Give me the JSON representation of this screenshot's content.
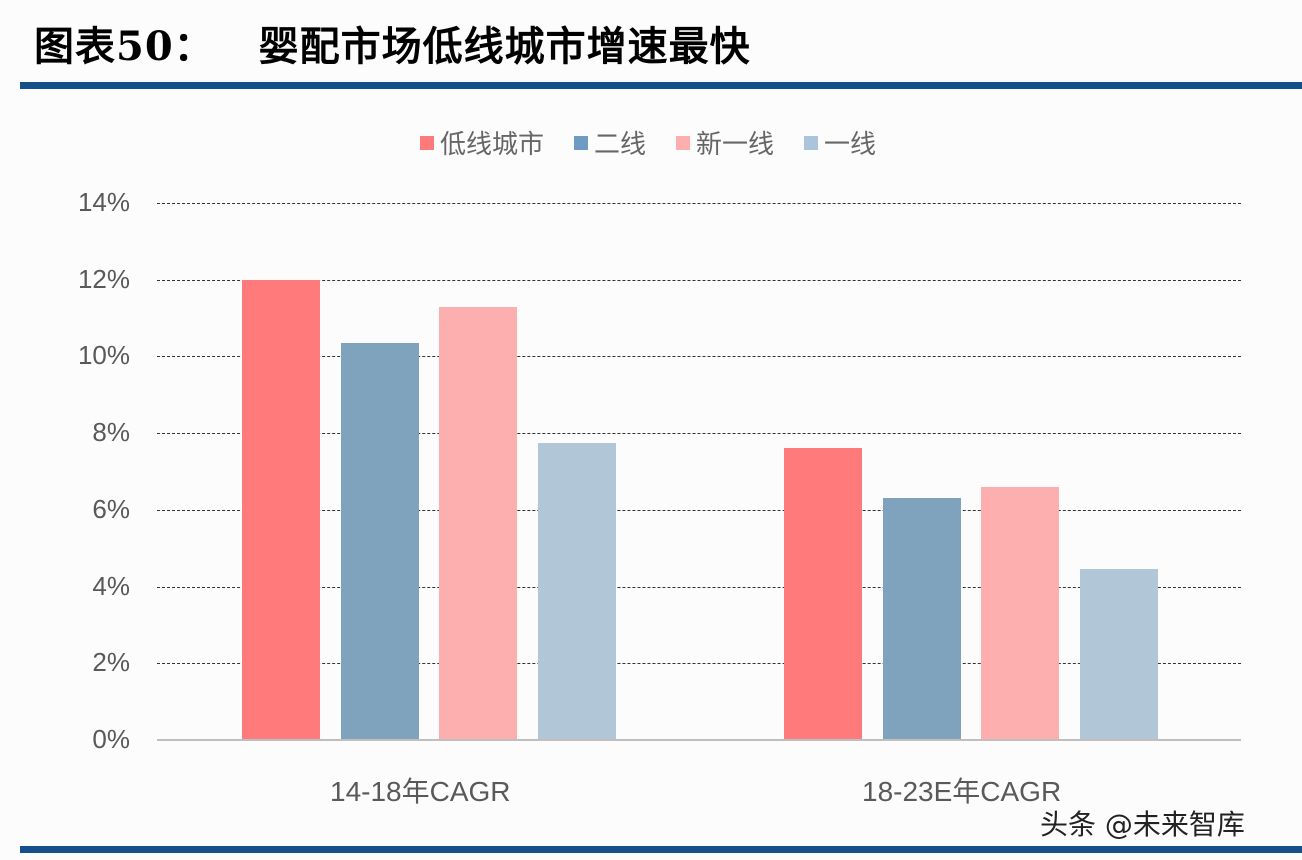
{
  "header": {
    "figure_label": "图表50：",
    "title": "婴配市场低线城市增速最快"
  },
  "legend": [
    {
      "label": "低线城市",
      "color": "#ff7b7b"
    },
    {
      "label": "二线",
      "color": "#7fa3bd"
    },
    {
      "label": "新一线",
      "color": "#fdaeae"
    },
    {
      "label": "一线",
      "color": "#b1c7d8"
    }
  ],
  "y_ticks": [
    "14%",
    "12%",
    "10%",
    "8%",
    "6%",
    "4%",
    "2%",
    "0%"
  ],
  "x_labels": [
    "14-18年CAGR",
    "18-23E年CAGR"
  ],
  "watermark": "头条 @未来智库",
  "chart_data": {
    "type": "bar",
    "title": "婴配市场低线城市增速最快",
    "categories": [
      "14-18年CAGR",
      "18-23E年CAGR"
    ],
    "series": [
      {
        "name": "低线城市",
        "values": [
          12.0,
          7.6
        ],
        "color": "#ff7b7b"
      },
      {
        "name": "二线",
        "values": [
          10.35,
          6.3
        ],
        "color": "#7fa3bd"
      },
      {
        "name": "新一线",
        "values": [
          11.3,
          6.6
        ],
        "color": "#fdaeae"
      },
      {
        "name": "一线",
        "values": [
          7.75,
          4.45
        ],
        "color": "#b1c7d8"
      }
    ],
    "xlabel": "",
    "ylabel": "",
    "ylim": [
      0,
      14
    ],
    "y_unit": "%",
    "grid": true,
    "legend_position": "top"
  }
}
